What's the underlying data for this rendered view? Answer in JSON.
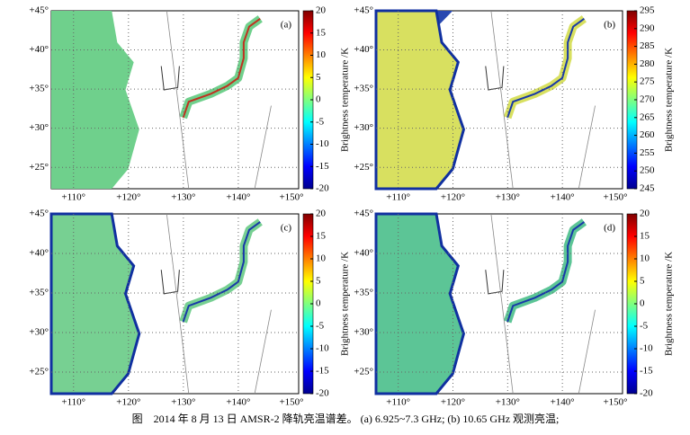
{
  "panels": [
    {
      "label": "(a)",
      "lat_ticks": [
        "+45°",
        "+40°",
        "+35°",
        "+30°",
        "+25°"
      ],
      "lon_ticks": [
        "+110°",
        "+120°",
        "+130°",
        "+140°",
        "+150°"
      ],
      "colorbar": {
        "label": "Brightness temperature /K",
        "lim": [
          -20,
          20
        ],
        "ticks": [
          20,
          15,
          10,
          5,
          0,
          -5,
          -10,
          -15,
          -20
        ]
      }
    },
    {
      "label": "(b)",
      "lat_ticks": [
        "+45°",
        "+40°",
        "+35°",
        "+30°",
        "+25°"
      ],
      "lon_ticks": [
        "+110°",
        "+120°",
        "+130°",
        "+140°",
        "+150°"
      ],
      "colorbar": {
        "label": "Brightness temperature /K",
        "lim": [
          245,
          295
        ],
        "ticks": [
          295,
          290,
          285,
          280,
          275,
          270,
          265,
          260,
          255,
          250,
          245
        ]
      }
    },
    {
      "label": "(c)",
      "lat_ticks": [
        "+45°",
        "+40°",
        "+35°",
        "+30°",
        "+25°"
      ],
      "lon_ticks": [
        "+110°",
        "+120°",
        "+130°",
        "+140°",
        "+150°"
      ],
      "colorbar": {
        "label": "Brightness temperature /K",
        "lim": [
          -20,
          20
        ],
        "ticks": [
          20,
          15,
          10,
          5,
          0,
          -5,
          -10,
          -15,
          -20
        ]
      }
    },
    {
      "label": "(d)",
      "lat_ticks": [
        "+45°",
        "+40°",
        "+35°",
        "+30°",
        "+25°"
      ],
      "lon_ticks": [
        "+110°",
        "+120°",
        "+130°",
        "+140°",
        "+150°"
      ],
      "colorbar": {
        "label": "Brightness temperature /K",
        "lim": [
          -20,
          20
        ],
        "ticks": [
          20,
          15,
          10,
          5,
          0,
          -5,
          -10,
          -15,
          -20
        ]
      }
    }
  ],
  "caption": "图　2014 年 8 月 13 日 AMSR-2 降轨亮温谱差。 (a) 6.925~7.3 GHz; (b) 10.65 GHz 观测亮温;"
}
